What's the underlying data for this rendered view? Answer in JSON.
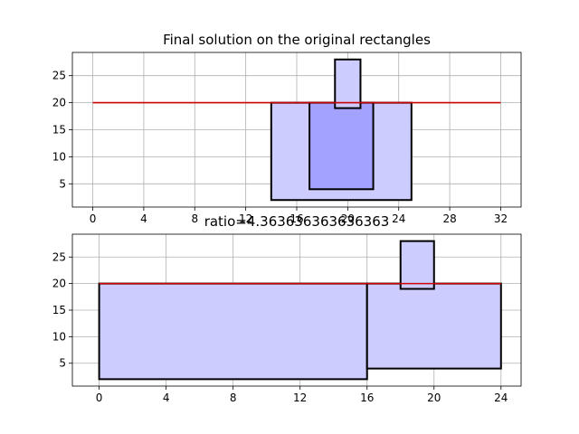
{
  "chart_data": [
    {
      "type": "rectangles",
      "title": "Final solution on the original rectangles",
      "xlim": [
        -1.6,
        33.6
      ],
      "ylim": [
        0.7,
        29.3
      ],
      "xticks": [
        0,
        4,
        8,
        12,
        16,
        20,
        24,
        28,
        32
      ],
      "yticks": [
        5,
        10,
        15,
        20,
        25
      ],
      "grid": true,
      "rectangles": [
        {
          "x0": 14,
          "y0": 2,
          "x1": 25,
          "y1": 20,
          "fill": "#ccccff"
        },
        {
          "x0": 17,
          "y0": 4,
          "x1": 22,
          "y1": 20,
          "fill": "#a3a3ff"
        },
        {
          "x0": 19,
          "y0": 19,
          "x1": 21,
          "y1": 28,
          "fill": "#ccccff"
        }
      ],
      "line": {
        "x": [
          0,
          32
        ],
        "y": [
          20,
          20
        ],
        "color": "#cc0000"
      }
    },
    {
      "type": "rectangles",
      "title": "ratio=4.363636363636363",
      "xlim": [
        -1.6,
        25.2
      ],
      "ylim": [
        0.7,
        29.3
      ],
      "xticks": [
        0,
        4,
        8,
        12,
        16,
        20,
        24
      ],
      "yticks": [
        5,
        10,
        15,
        20,
        25
      ],
      "grid": true,
      "rectangles": [
        {
          "x0": 0,
          "y0": 2,
          "x1": 16,
          "y1": 20,
          "fill": "#ccccff"
        },
        {
          "x0": 16,
          "y0": 4,
          "x1": 24,
          "y1": 20,
          "fill": "#ccccff"
        },
        {
          "x0": 18,
          "y0": 19,
          "x1": 20,
          "y1": 28,
          "fill": "#ccccff"
        }
      ],
      "line": {
        "x": [
          0,
          24
        ],
        "y": [
          20,
          20
        ],
        "color": "#cc0000"
      }
    }
  ]
}
